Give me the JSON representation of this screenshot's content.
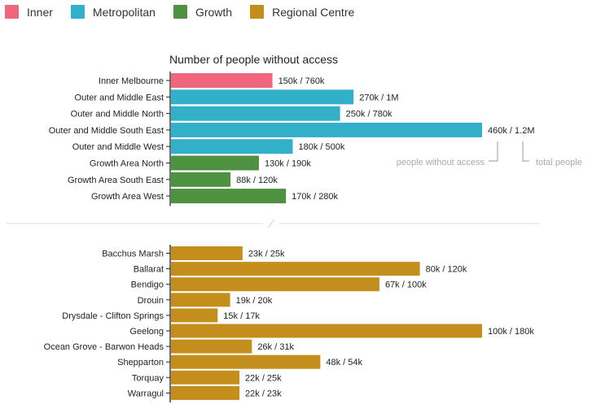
{
  "legend": [
    {
      "label": "Inner",
      "color": "#f0677d"
    },
    {
      "label": "Metropolitan",
      "color": "#32afc9"
    },
    {
      "label": "Growth",
      "color": "#4e9141"
    },
    {
      "label": "Regional Centre",
      "color": "#c48e1c"
    }
  ],
  "annotations": {
    "without": "people without access",
    "total": "total people"
  },
  "chart_data": [
    {
      "type": "bar",
      "orientation": "horizontal",
      "title": "Number of people without access",
      "unit": "thousands",
      "categories": [
        "Inner Melbourne",
        "Outer and Middle East",
        "Outer and Middle North",
        "Outer and Middle South East",
        "Outer and Middle West",
        "Growth Area North",
        "Growth Area South East",
        "Growth Area West"
      ],
      "groups": [
        "Inner",
        "Metropolitan",
        "Metropolitan",
        "Metropolitan",
        "Metropolitan",
        "Growth",
        "Growth",
        "Growth"
      ],
      "values": [
        150,
        270,
        250,
        460,
        180,
        130,
        88,
        170
      ],
      "totals": [
        760,
        1000,
        780,
        1200,
        500,
        190,
        120,
        280
      ],
      "labels": [
        "150k / 760k",
        "270k / 1M",
        "250k / 780k",
        "460k / 1.2M",
        "180k / 500k",
        "130k / 190k",
        "88k / 120k",
        "170k / 280k"
      ],
      "xlim": [
        0,
        460
      ]
    },
    {
      "type": "bar",
      "orientation": "horizontal",
      "unit": "thousands",
      "categories": [
        "Bacchus Marsh",
        "Ballarat",
        "Bendigo",
        "Drouin",
        "Drysdale - Clifton Springs",
        "Geelong",
        "Ocean Grove - Barwon Heads",
        "Shepparton",
        "Torquay",
        "Warragul"
      ],
      "groups": [
        "Regional Centre",
        "Regional Centre",
        "Regional Centre",
        "Regional Centre",
        "Regional Centre",
        "Regional Centre",
        "Regional Centre",
        "Regional Centre",
        "Regional Centre",
        "Regional Centre"
      ],
      "values": [
        23,
        80,
        67,
        19,
        15,
        100,
        26,
        48,
        22,
        22
      ],
      "totals": [
        25,
        120,
        100,
        20,
        17,
        180,
        31,
        54,
        25,
        23
      ],
      "labels": [
        "23k / 25k",
        "80k / 120k",
        "67k / 100k",
        "19k / 20k",
        "15k / 17k",
        "100k / 180k",
        "26k / 31k",
        "48k / 54k",
        "22k / 25k",
        "22k / 23k"
      ],
      "xlim": [
        0,
        100
      ]
    }
  ]
}
